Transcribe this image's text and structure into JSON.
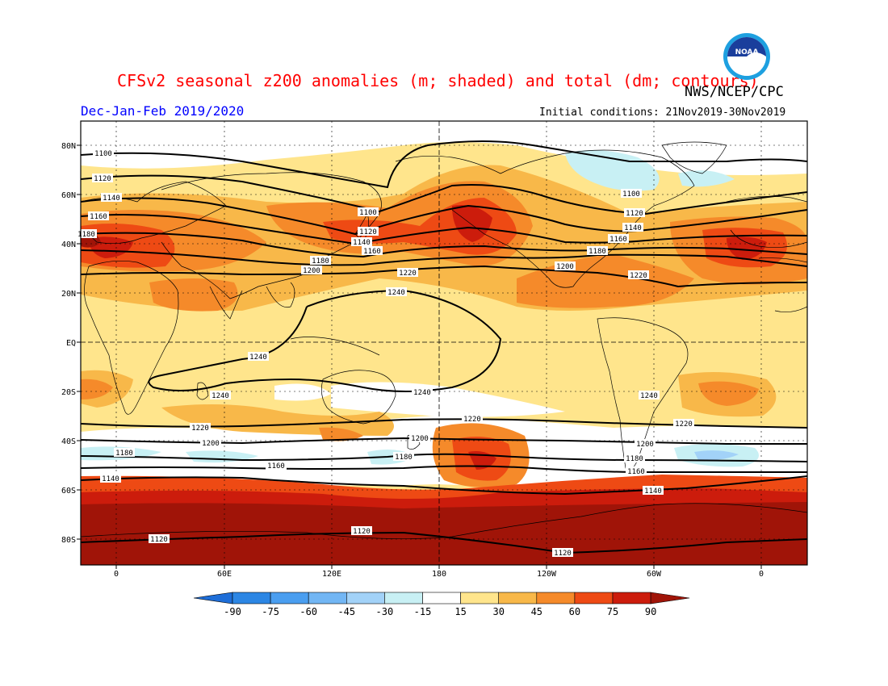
{
  "header": {
    "title": "CFSv2 seasonal z200 anomalies (m; shaded) and total (dm; contours)",
    "agency": "NWS/NCEP/CPC",
    "season": "Dec-Jan-Feb 2019/2020",
    "initial_conditions": "Initial conditions: 21Nov2019-30Nov2019",
    "logo_text": "NOAA"
  },
  "axes": {
    "lat_labels": [
      "80N",
      "60N",
      "40N",
      "20N",
      "EQ",
      "20S",
      "40S",
      "60S",
      "80S"
    ],
    "lon_labels": [
      "0",
      "60E",
      "120E",
      "180",
      "120W",
      "60W",
      "0"
    ]
  },
  "contour_labels": [
    "1100",
    "1120",
    "1140",
    "1160",
    "1180",
    "1200",
    "1220",
    "1240"
  ],
  "colorbar": {
    "levels": [
      "-90",
      "-75",
      "-60",
      "-45",
      "-30",
      "-15",
      "15",
      "30",
      "45",
      "60",
      "75",
      "90"
    ],
    "colors": [
      "#1e6ed8",
      "#2c86e4",
      "#4a9ef0",
      "#72b6f4",
      "#a2d2f8",
      "#c8f0f4",
      "#ffffff",
      "#ffe58c",
      "#f8b849",
      "#f58a2a",
      "#ee4a14",
      "#cc1c0c",
      "#a01408"
    ]
  }
}
